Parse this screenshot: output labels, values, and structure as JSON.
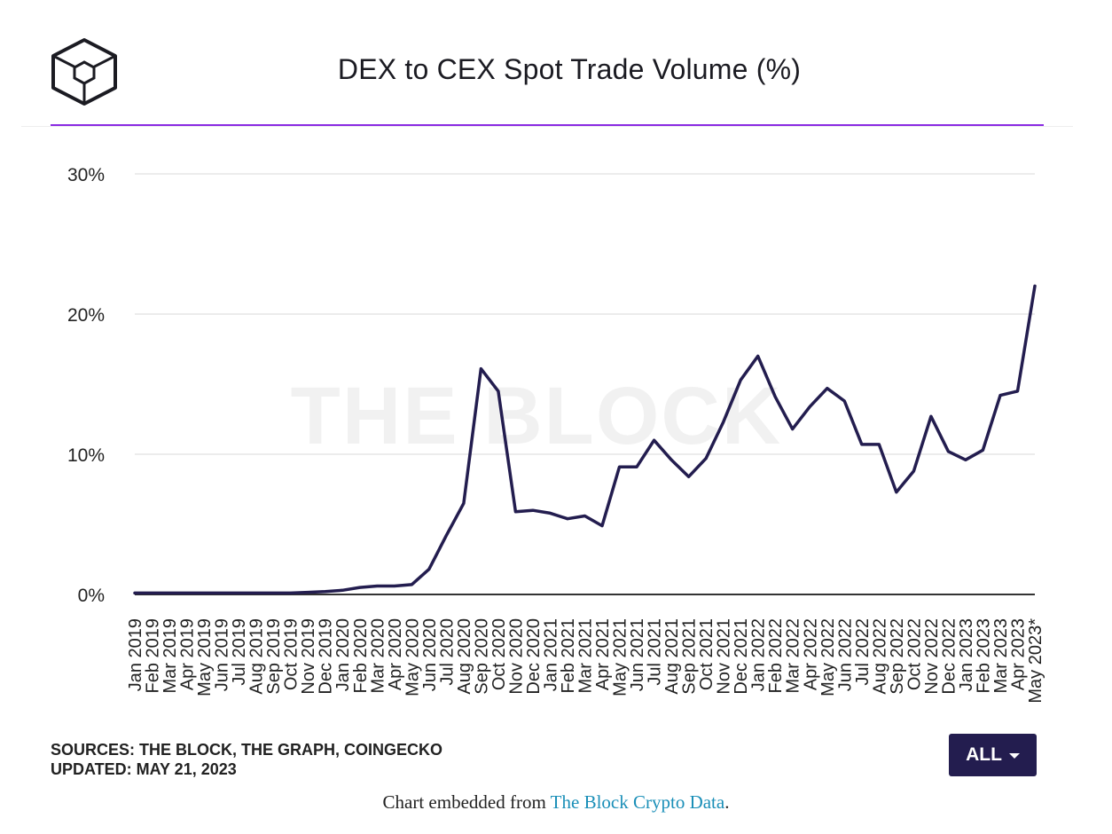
{
  "title": "DEX to CEX Spot Trade Volume (%)",
  "watermark": "THE BLOCK",
  "sources": "SOURCES: THE BLOCK, THE GRAPH, COINGECKO",
  "updated": "UPDATED: MAY 21, 2023",
  "range_button": {
    "label": "ALL",
    "icon": "chevron-down-icon"
  },
  "footer": {
    "prefix": "Chart embedded from ",
    "link_text": "The Block Crypto Data",
    "suffix": "."
  },
  "colors": {
    "accent_rule": "#8a2be2",
    "line": "#231d4f",
    "button": "#231d4f",
    "link": "#1a8fb8"
  },
  "chart_data": {
    "type": "line",
    "title": "DEX to CEX Spot Trade Volume (%)",
    "xlabel": "",
    "ylabel": "",
    "ylim": [
      0,
      30
    ],
    "yticks": [
      "0%",
      "10%",
      "20%",
      "30%"
    ],
    "grid": true,
    "categories": [
      "Jan 2019",
      "Feb 2019",
      "Mar 2019",
      "Apr 2019",
      "May 2019",
      "Jun 2019",
      "Jul 2019",
      "Aug 2019",
      "Sep 2019",
      "Oct 2019",
      "Nov 2019",
      "Dec 2019",
      "Jan 2020",
      "Feb 2020",
      "Mar 2020",
      "Apr 2020",
      "May 2020",
      "Jun 2020",
      "Jul 2020",
      "Aug 2020",
      "Sep 2020",
      "Oct 2020",
      "Nov 2020",
      "Dec 2020",
      "Jan 2021",
      "Feb 2021",
      "Mar 2021",
      "Apr 2021",
      "May 2021",
      "Jun 2021",
      "Jul 2021",
      "Aug 2021",
      "Sep 2021",
      "Oct 2021",
      "Nov 2021",
      "Dec 2021",
      "Jan 2022",
      "Feb 2022",
      "Mar 2022",
      "Apr 2022",
      "May 2022",
      "Jun 2022",
      "Jul 2022",
      "Aug 2022",
      "Sep 2022",
      "Oct 2022",
      "Nov 2022",
      "Dec 2022",
      "Jan 2023",
      "Feb 2023",
      "Mar 2023",
      "Apr 2023",
      "May 2023*"
    ],
    "values": [
      0.1,
      0.1,
      0.1,
      0.1,
      0.1,
      0.1,
      0.1,
      0.1,
      0.1,
      0.1,
      0.15,
      0.2,
      0.3,
      0.5,
      0.6,
      0.6,
      0.7,
      1.8,
      4.2,
      6.5,
      16.1,
      14.5,
      5.9,
      6.0,
      5.8,
      5.4,
      5.6,
      4.9,
      9.1,
      9.1,
      11.0,
      9.6,
      8.4,
      9.7,
      12.3,
      15.3,
      17.0,
      14.1,
      11.8,
      13.4,
      14.7,
      13.8,
      10.7,
      10.7,
      7.3,
      8.8,
      12.7,
      10.2,
      9.6,
      10.3,
      14.2,
      14.5,
      22.0
    ]
  }
}
